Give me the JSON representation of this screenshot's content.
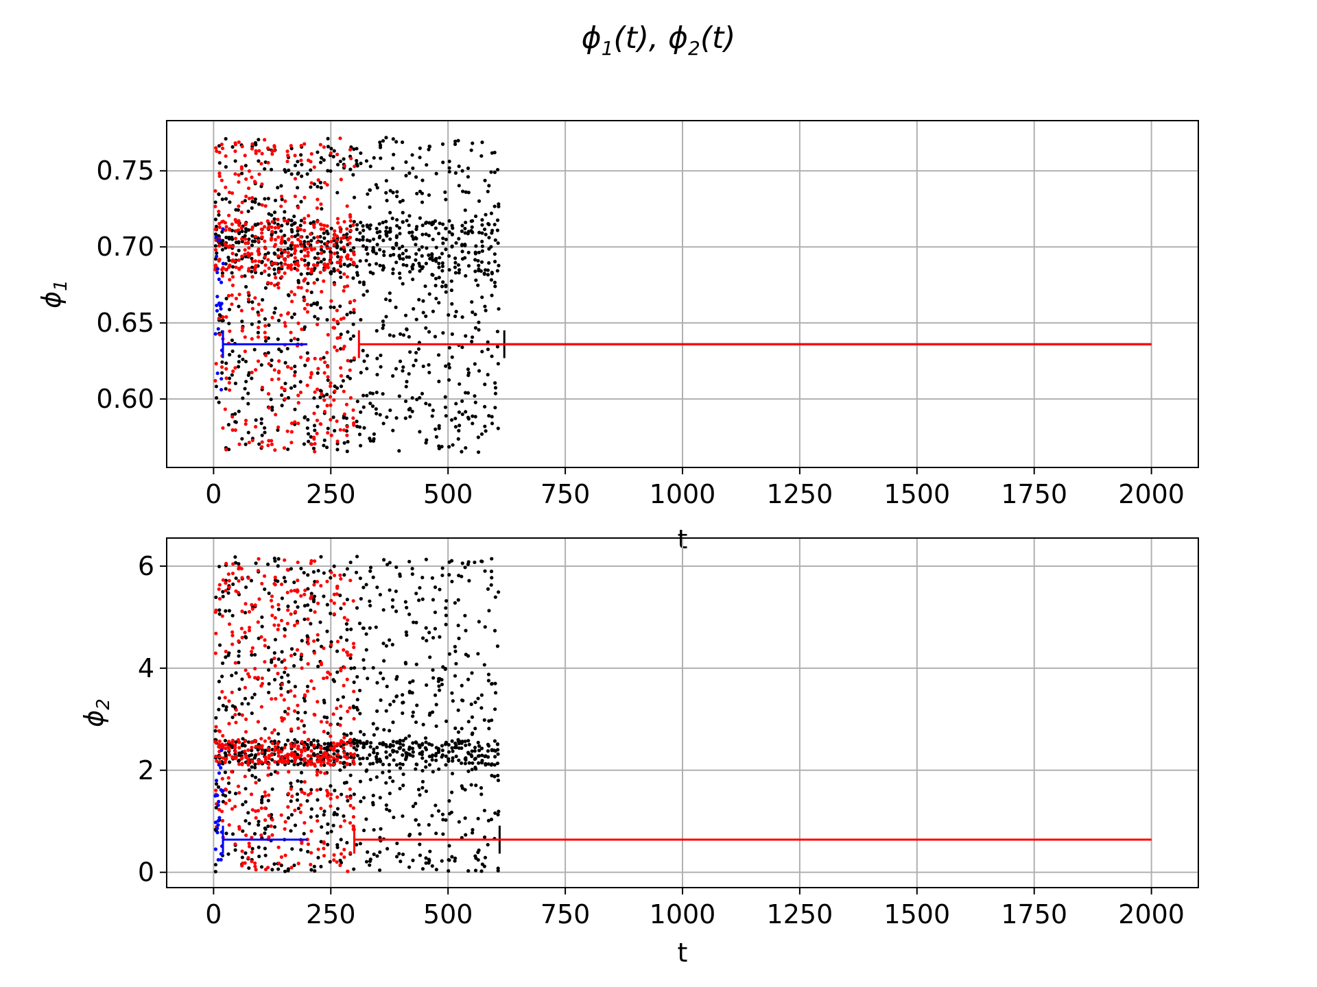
{
  "figure": {
    "suptitle_base": "ϕ",
    "suptitle_sub1": "1",
    "suptitle_mid": "(t), ϕ",
    "suptitle_sub2": "2",
    "suptitle_end": "(t)"
  },
  "colors": {
    "series_black": "#000000",
    "series_red": "#ff0000",
    "series_blue": "#0000ff",
    "grid": "#b0b0b0",
    "axes": "#000000"
  },
  "chart_data": [
    {
      "type": "scatter",
      "panel": "top",
      "xlabel": "t",
      "ylabel_base": "ϕ",
      "ylabel_sub": "1",
      "xlim": [
        -100,
        2100
      ],
      "ylim": [
        0.555,
        0.783
      ],
      "xticks": [
        0,
        250,
        500,
        750,
        1000,
        1250,
        1500,
        1750,
        2000
      ],
      "yticks": [
        0.6,
        0.65,
        0.7,
        0.75
      ],
      "ytick_labels": [
        "0.60",
        "0.65",
        "0.70",
        "0.75"
      ],
      "grid": true,
      "series": [
        {
          "color": "black",
          "chaotic_t": [
            0,
            610
          ],
          "chaotic_y": [
            0.565,
            0.772
          ],
          "dense_band_y": [
            0.682,
            0.718
          ],
          "converged_from_t": 620,
          "converged_to_t": 2000,
          "converged_y": 0.636
        },
        {
          "color": "red",
          "chaotic_t": [
            0,
            300
          ],
          "chaotic_y": [
            0.565,
            0.772
          ],
          "dense_band_y": [
            0.682,
            0.718
          ],
          "converged_from_t": 310,
          "converged_to_t": 2000,
          "converged_y": 0.636
        },
        {
          "color": "blue",
          "chaotic_t": [
            0,
            20
          ],
          "chaotic_y": [
            0.595,
            0.712
          ],
          "converged_from_t": 20,
          "converged_to_t": 200,
          "converged_y": 0.636
        }
      ]
    },
    {
      "type": "scatter",
      "panel": "bottom",
      "xlabel": "t",
      "ylabel_base": "ϕ",
      "ylabel_sub": "2",
      "xlim": [
        -100,
        2100
      ],
      "ylim": [
        -0.3,
        6.55
      ],
      "xticks": [
        0,
        250,
        500,
        750,
        1000,
        1250,
        1500,
        1750,
        2000
      ],
      "yticks": [
        0,
        2,
        4,
        6
      ],
      "ytick_labels": [
        "0",
        "2",
        "4",
        "6"
      ],
      "grid": true,
      "series": [
        {
          "color": "black",
          "chaotic_t": [
            0,
            610
          ],
          "chaotic_y": [
            0.0,
            6.2
          ],
          "dense_band_y": [
            2.1,
            2.6
          ],
          "converged_from_t": 610,
          "converged_to_t": 2000,
          "converged_y": 0.64
        },
        {
          "color": "red",
          "chaotic_t": [
            0,
            300
          ],
          "chaotic_y": [
            0.0,
            6.2
          ],
          "dense_band_y": [
            2.1,
            2.6
          ],
          "converged_from_t": 300,
          "converged_to_t": 2000,
          "converged_y": 0.64
        },
        {
          "color": "blue",
          "chaotic_t": [
            0,
            20
          ],
          "chaotic_y": [
            0.2,
            2.4
          ],
          "converged_from_t": 20,
          "converged_to_t": 200,
          "converged_y": 0.64
        }
      ]
    }
  ]
}
